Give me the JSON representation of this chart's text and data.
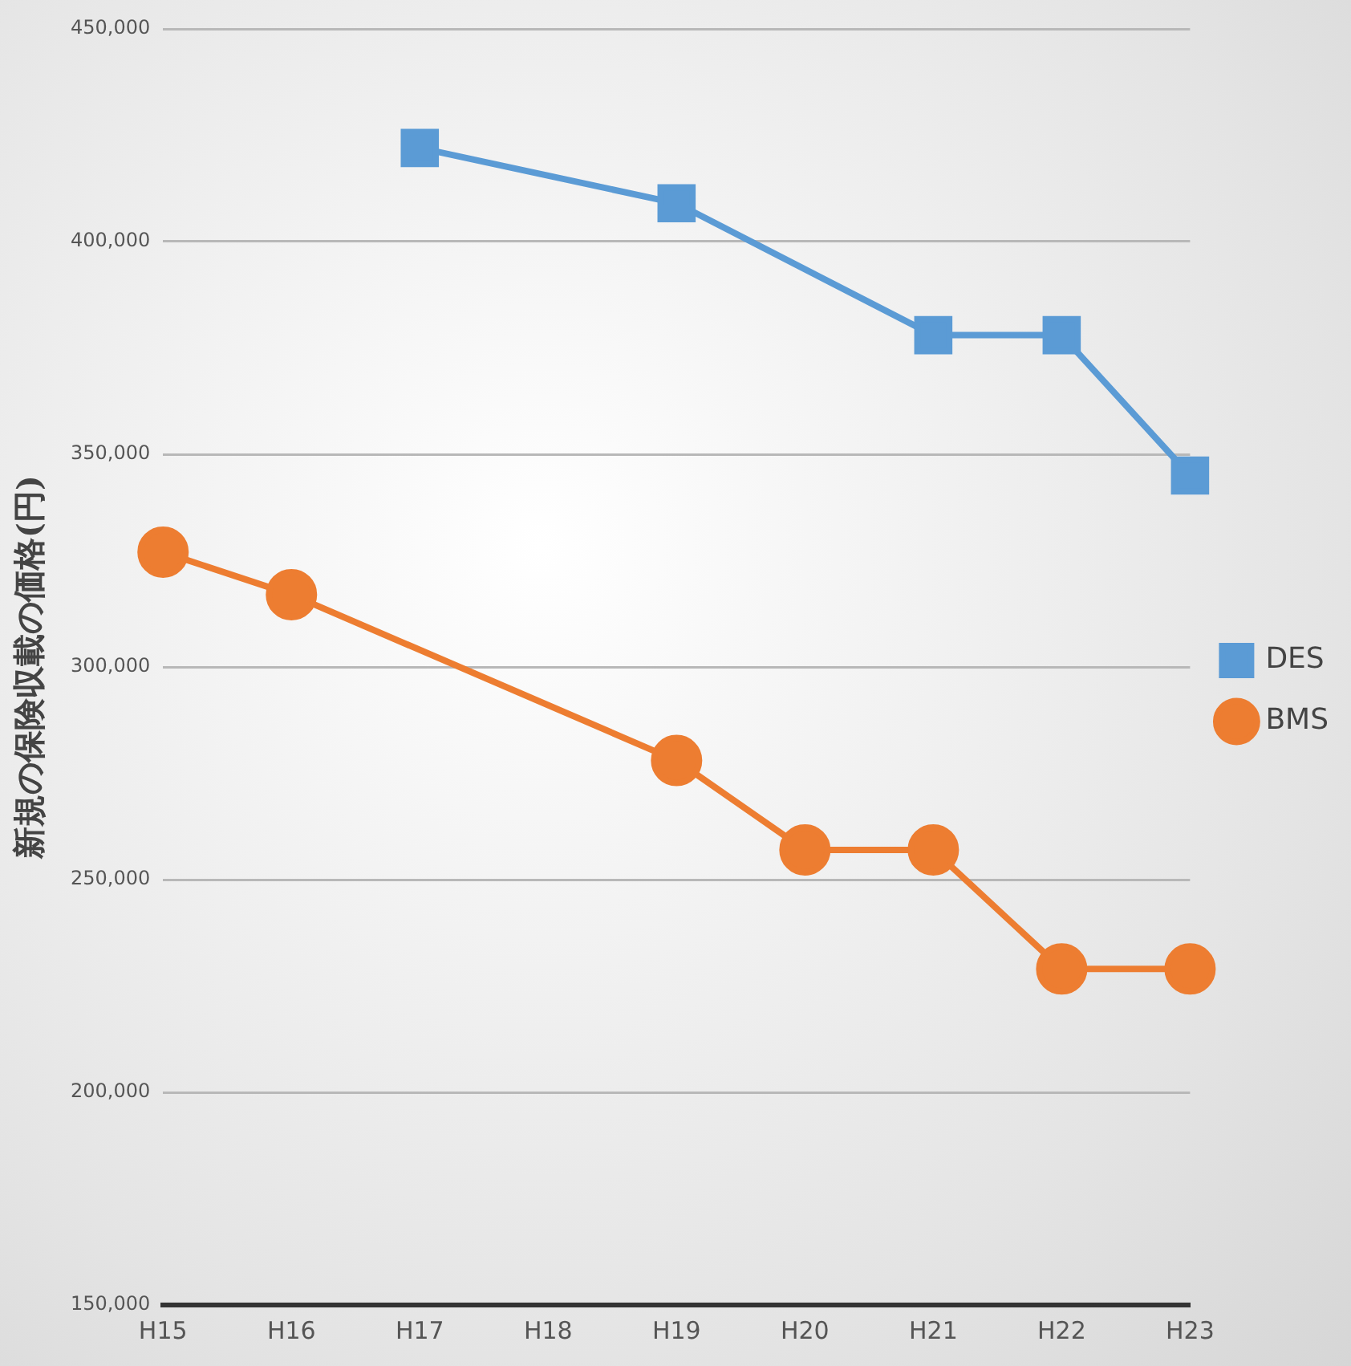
{
  "chart_data": {
    "type": "line",
    "ylabel": "新規の保険収載の価格(円)",
    "categories": [
      "H15",
      "H16",
      "H17",
      "H18",
      "H19",
      "H20",
      "H21",
      "H22",
      "H23"
    ],
    "series": [
      {
        "name": "DES",
        "color": "#5b9bd5",
        "marker": "square",
        "values": [
          null,
          null,
          422000,
          null,
          409000,
          null,
          378000,
          378000,
          345000
        ]
      },
      {
        "name": "BMS",
        "color": "#ed7d31",
        "marker": "circle",
        "values": [
          327000,
          317000,
          null,
          null,
          278000,
          257000,
          257000,
          229000,
          229000
        ]
      }
    ],
    "ylim": [
      150000,
      450000
    ],
    "yticks": [
      {
        "value": 150000,
        "label": "150,000"
      },
      {
        "value": 200000,
        "label": "200,000"
      },
      {
        "value": 250000,
        "label": "250,000"
      },
      {
        "value": 300000,
        "label": "300,000"
      },
      {
        "value": 350000,
        "label": "350,000"
      },
      {
        "value": 400000,
        "label": "400,000"
      },
      {
        "value": 450000,
        "label": "450,000"
      }
    ],
    "grid": "y",
    "legend": "right",
    "line_style": "solid"
  }
}
